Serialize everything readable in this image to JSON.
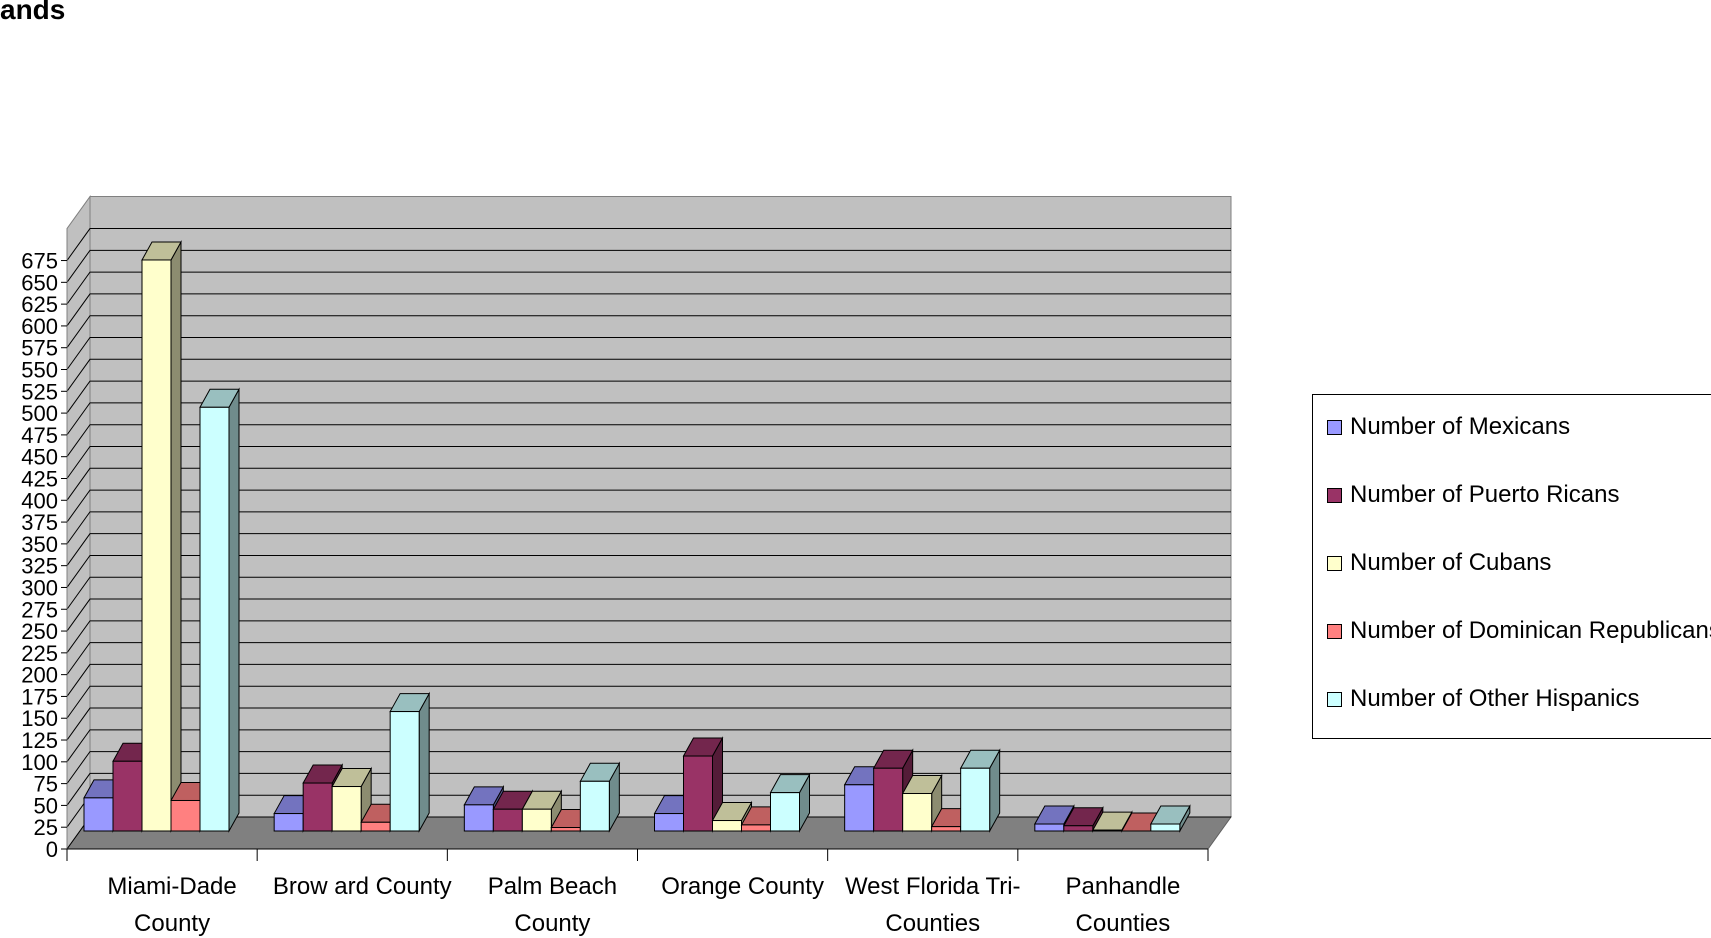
{
  "title_fragment": "ands",
  "chart_data": {
    "type": "bar",
    "categories": [
      [
        "Miami-Dade",
        "County"
      ],
      [
        "Brow ard County"
      ],
      [
        "Palm Beach",
        "County"
      ],
      [
        "Orange County"
      ],
      [
        "West Florida Tri-",
        "Counties"
      ],
      [
        "Panhandle",
        "Counties"
      ]
    ],
    "series": [
      {
        "name": "Number of Mexicans",
        "color": "#9999ff",
        "values": [
          38,
          20,
          30,
          20,
          53,
          8
        ]
      },
      {
        "name": "Number of Puerto Ricans",
        "color": "#993366",
        "values": [
          80,
          55,
          25,
          86,
          72,
          6
        ]
      },
      {
        "name": "Number of Cubans",
        "color": "#ffffcc",
        "values": [
          655,
          51,
          25,
          12,
          43,
          1
        ]
      },
      {
        "name": "Number of Dominican Republicans",
        "color": "#ff8080",
        "values": [
          35,
          10,
          4,
          7,
          5,
          0
        ]
      },
      {
        "name": "Number of Other Hispanics",
        "color": "#ccffff",
        "values": [
          486,
          137,
          57,
          44,
          72,
          8
        ]
      }
    ],
    "yticks": [
      "0",
      "25",
      "50",
      "75",
      "100",
      "125",
      "150",
      "175",
      "200",
      "225",
      "250",
      "275",
      "300",
      "325",
      "350",
      "375",
      "400",
      "425",
      "450",
      "475",
      "500",
      "525",
      "550",
      "575",
      "600",
      "625",
      "650",
      "675"
    ],
    "ylim": [
      0,
      675
    ],
    "grid": true,
    "legend_position": "right",
    "three_d": true
  }
}
